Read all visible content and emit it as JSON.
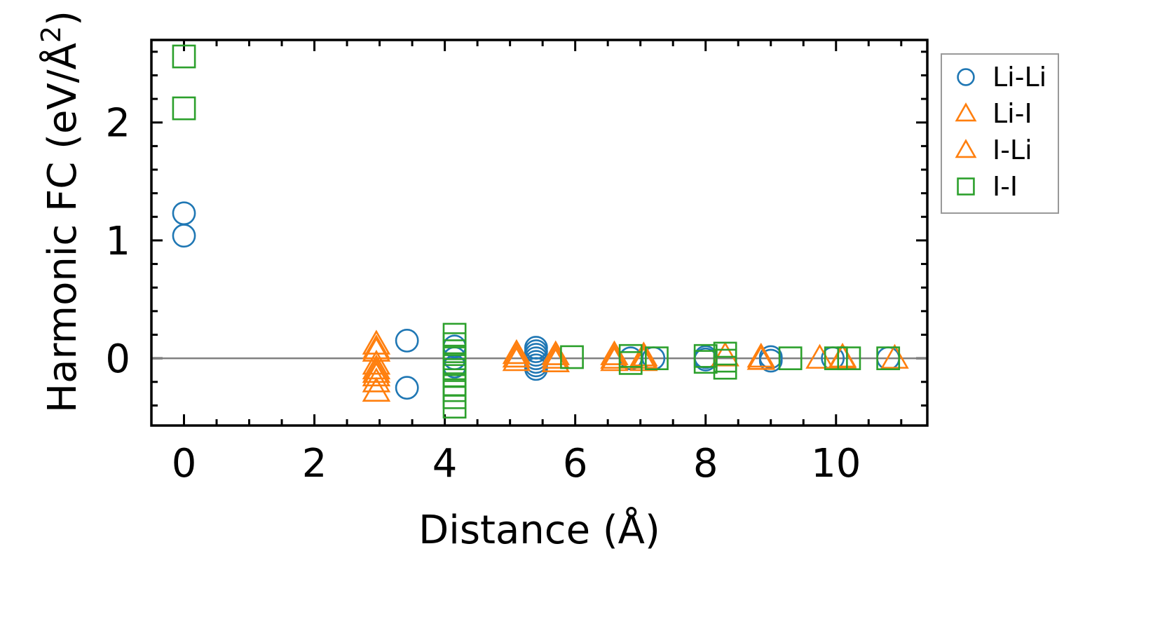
{
  "chart_data": {
    "type": "scatter",
    "xlabel": "Distance (Å)",
    "ylabel": "Harmonic FC (eV/Å²)",
    "ylabel_base": "Harmonic FC (eV/Å",
    "ylabel_sup": "2",
    "ylabel_close": ")",
    "xlim": [
      -0.5,
      11.4
    ],
    "ylim": [
      -0.57,
      2.7
    ],
    "x_ticks": [
      0,
      2,
      4,
      6,
      8,
      10
    ],
    "x_tick_labels": [
      "0",
      "2",
      "4",
      "6",
      "8",
      "10"
    ],
    "y_ticks": [
      0,
      1,
      2
    ],
    "y_tick_labels": [
      "0",
      "1",
      "2"
    ],
    "zero_line": true,
    "grid": false,
    "legend_position": "outside-right",
    "series": [
      {
        "name": "Li-Li",
        "marker": "circle",
        "color": "#1f77b4",
        "points": [
          [
            0,
            1.23
          ],
          [
            0,
            1.04
          ],
          [
            3.42,
            0.15
          ],
          [
            3.42,
            -0.25
          ],
          [
            4.15,
            0.1
          ],
          [
            4.15,
            0.0
          ],
          [
            4.15,
            -0.07
          ],
          [
            5.4,
            0.09
          ],
          [
            5.4,
            0.06
          ],
          [
            5.4,
            0.03
          ],
          [
            5.4,
            0.0
          ],
          [
            5.4,
            -0.03
          ],
          [
            5.4,
            -0.06
          ],
          [
            5.4,
            -0.09
          ],
          [
            6.85,
            0.0
          ],
          [
            7.2,
            0.0
          ],
          [
            8.0,
            0.01
          ],
          [
            8.0,
            -0.01
          ],
          [
            9.0,
            0.01
          ],
          [
            9.0,
            -0.02
          ],
          [
            9.95,
            0.0
          ],
          [
            10.8,
            0.0
          ]
        ]
      },
      {
        "name": "Li-I",
        "marker": "triangle",
        "color": "#ff7f0e",
        "points": [
          [
            2.95,
            0.12
          ],
          [
            2.95,
            0.06
          ],
          [
            2.95,
            -0.05
          ],
          [
            2.95,
            -0.09
          ],
          [
            2.95,
            -0.15
          ],
          [
            2.95,
            -0.2
          ],
          [
            2.95,
            -0.28
          ],
          [
            5.1,
            0.04
          ],
          [
            5.1,
            -0.02
          ],
          [
            5.7,
            0.03
          ],
          [
            5.7,
            -0.03
          ],
          [
            6.6,
            0.03
          ],
          [
            6.6,
            -0.02
          ],
          [
            7.05,
            0.02
          ],
          [
            7.05,
            -0.02
          ],
          [
            8.3,
            0.02
          ],
          [
            8.85,
            0.01
          ],
          [
            9.75,
            0.0
          ],
          [
            10.1,
            0.0
          ],
          [
            10.9,
            0.0
          ]
        ]
      },
      {
        "name": "I-Li",
        "marker": "triangle",
        "color": "#ff7f0e",
        "points": [
          [
            2.95,
            0.08
          ],
          [
            2.95,
            -0.12
          ],
          [
            5.1,
            0.01
          ],
          [
            5.7,
            0.0
          ],
          [
            6.6,
            0.0
          ],
          [
            7.05,
            0.0
          ],
          [
            8.85,
            -0.01
          ],
          [
            10.1,
            0.01
          ]
        ]
      },
      {
        "name": "I-I",
        "marker": "square",
        "color": "#2ca02c",
        "points": [
          [
            0,
            2.56
          ],
          [
            0,
            2.12
          ],
          [
            4.15,
            0.2
          ],
          [
            4.15,
            0.12
          ],
          [
            4.15,
            0.06
          ],
          [
            4.15,
            0.0
          ],
          [
            4.15,
            -0.05
          ],
          [
            4.15,
            -0.1
          ],
          [
            4.15,
            -0.15
          ],
          [
            4.15,
            -0.22
          ],
          [
            4.15,
            -0.27
          ],
          [
            4.15,
            -0.33
          ],
          [
            4.15,
            -0.41
          ],
          [
            5.95,
            0.01
          ],
          [
            6.85,
            0.02
          ],
          [
            6.85,
            -0.04
          ],
          [
            7.25,
            0.0
          ],
          [
            8.0,
            0.02
          ],
          [
            8.0,
            -0.03
          ],
          [
            8.3,
            0.04
          ],
          [
            8.3,
            -0.02
          ],
          [
            8.3,
            -0.08
          ],
          [
            9.3,
            0.0
          ],
          [
            10.0,
            0.0
          ],
          [
            10.2,
            0.0
          ],
          [
            10.8,
            0.0
          ]
        ]
      }
    ]
  }
}
